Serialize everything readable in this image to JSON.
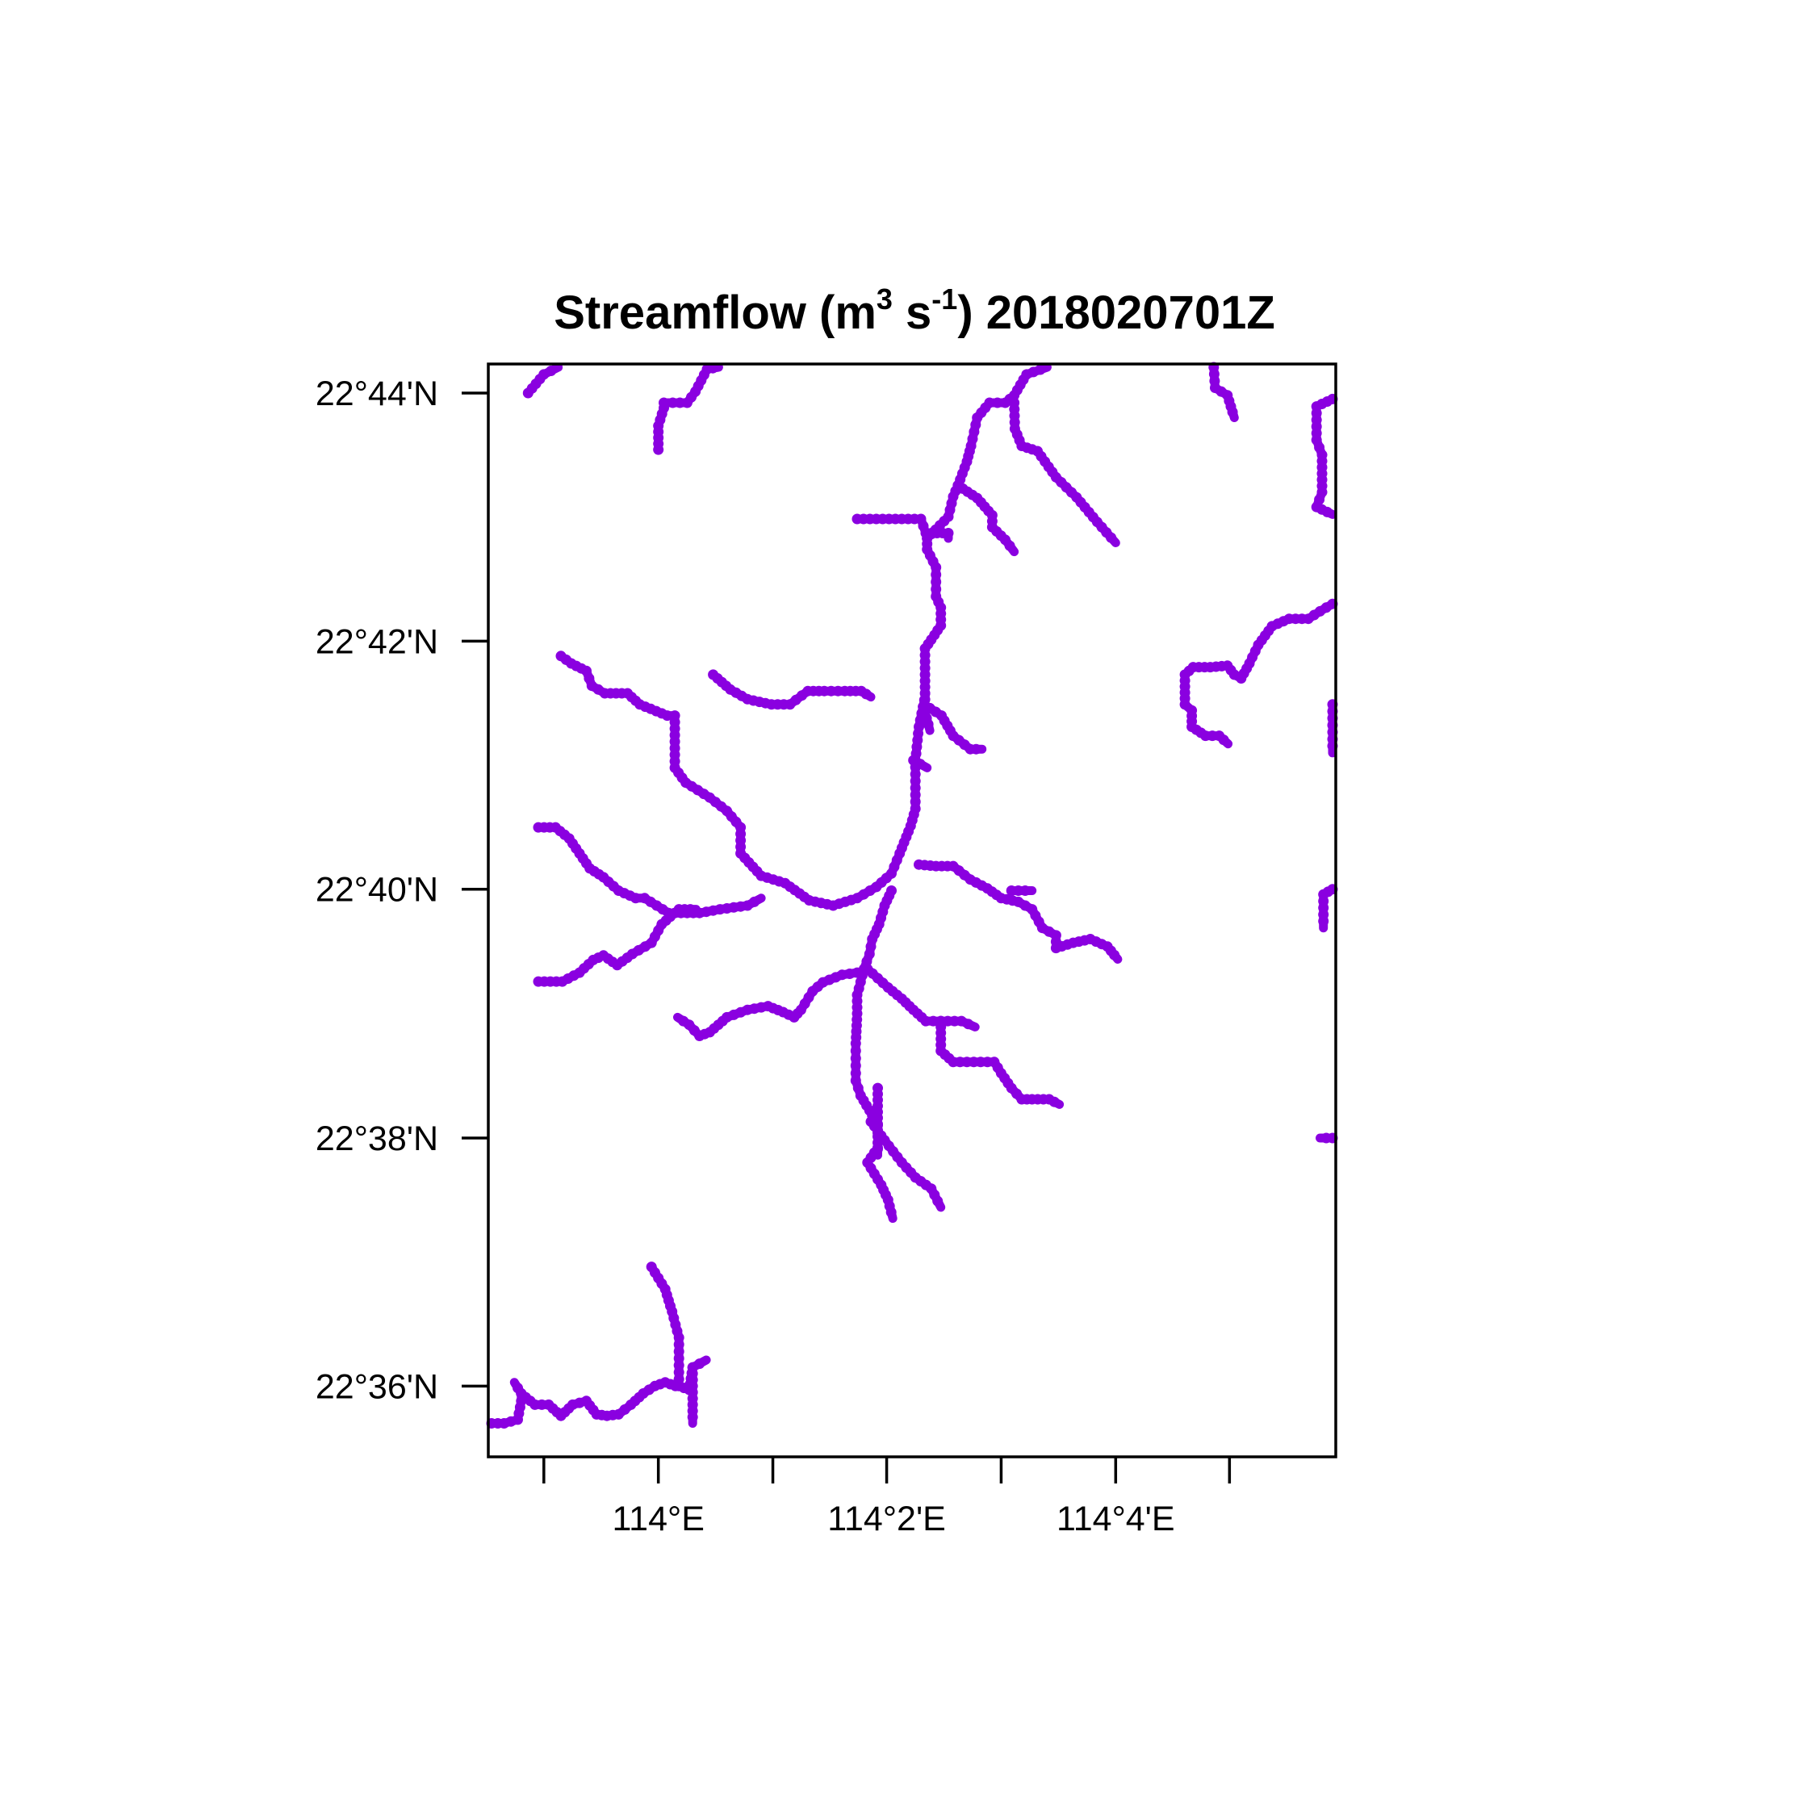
{
  "title": {
    "variable": "Streamflow",
    "unit_open": "(m",
    "unit_sup1": "3",
    "unit_mid": " s",
    "unit_sup2": "-1",
    "unit_close": ")",
    "timestamp": "2018020701Z"
  },
  "map": {
    "stream_color": "#8a00e0",
    "x_axis": {
      "ticks": [
        {
          "lon": 113.9833,
          "label": ""
        },
        {
          "lon": 114.0,
          "label": "114°E"
        },
        {
          "lon": 114.0167,
          "label": ""
        },
        {
          "lon": 114.0333,
          "label": "114°2'E"
        },
        {
          "lon": 114.05,
          "label": ""
        },
        {
          "lon": 114.0667,
          "label": "114°4'E"
        },
        {
          "lon": 114.0833,
          "label": ""
        }
      ]
    },
    "y_axis": {
      "ticks": [
        {
          "lat": 22.7333,
          "label": "22°44'N"
        },
        {
          "lat": 22.7,
          "label": "22°42'N"
        },
        {
          "lat": 22.6667,
          "label": "22°40'N"
        },
        {
          "lat": 22.6333,
          "label": "22°38'N"
        },
        {
          "lat": 22.6,
          "label": "22°36'N"
        }
      ]
    },
    "lon_range": [
      113.9752,
      114.0988
    ],
    "lat_range": [
      22.5905,
      22.7372
    ],
    "streams": [
      [
        [
          113.981,
          22.7333
        ],
        [
          113.9833,
          22.7358
        ],
        [
          113.9854,
          22.7372
        ]
      ],
      [
        [
          114.0,
          22.7257
        ],
        [
          114.0,
          22.7289
        ],
        [
          114.0008,
          22.7313
        ],
        [
          114.0008,
          22.732
        ],
        [
          114.0021,
          22.732
        ],
        [
          114.0042,
          22.732
        ],
        [
          114.0054,
          22.7335
        ],
        [
          114.0071,
          22.7365
        ],
        [
          114.0088,
          22.7372
        ]
      ],
      [
        [
          114.029,
          22.7164
        ],
        [
          114.0383,
          22.7164
        ],
        [
          114.039,
          22.7145
        ],
        [
          114.0423,
          22.7145
        ],
        [
          114.0423,
          22.7138
        ]
      ],
      [
        [
          114.0392,
          22.7138
        ],
        [
          114.0392,
          22.7123
        ],
        [
          114.0405,
          22.7099
        ],
        [
          114.0405,
          22.706
        ],
        [
          114.0412,
          22.7045
        ],
        [
          114.0412,
          22.7021
        ],
        [
          114.0398,
          22.7002
        ],
        [
          114.0389,
          22.699
        ],
        [
          114.0389,
          22.6955
        ],
        [
          114.0389,
          22.6905
        ],
        [
          114.0396,
          22.688
        ]
      ],
      [
        [
          114.0392,
          22.7138
        ],
        [
          114.0423,
          22.7167
        ],
        [
          114.043,
          22.7194
        ],
        [
          114.0437,
          22.7209
        ],
        [
          114.045,
          22.7241
        ],
        [
          114.0456,
          22.7262
        ],
        [
          114.0465,
          22.73
        ],
        [
          114.0483,
          22.732
        ],
        [
          114.0506,
          22.732
        ],
        [
          114.0519,
          22.733
        ],
        [
          114.0537,
          22.7358
        ],
        [
          114.0567,
          22.7372
        ]
      ],
      [
        [
          114.0437,
          22.7209
        ],
        [
          114.0465,
          22.7192
        ],
        [
          114.0487,
          22.7169
        ],
        [
          114.0487,
          22.7153
        ],
        [
          114.0506,
          22.7136
        ],
        [
          114.0519,
          22.712
        ]
      ],
      [
        [
          114.0519,
          22.732
        ],
        [
          114.052,
          22.7285
        ],
        [
          114.053,
          22.7262
        ],
        [
          114.0553,
          22.7255
        ],
        [
          114.058,
          22.722
        ],
        [
          114.061,
          22.7193
        ],
        [
          114.064,
          22.716
        ],
        [
          114.0667,
          22.7132
        ]
      ],
      [
        [
          114.081,
          22.7372
        ],
        [
          114.0812,
          22.734
        ],
        [
          114.083,
          22.733
        ],
        [
          114.084,
          22.73
        ]
      ],
      [
        [
          114.0988,
          22.7325
        ],
        [
          114.096,
          22.7315
        ],
        [
          114.096,
          22.727
        ],
        [
          114.0968,
          22.725
        ],
        [
          114.0968,
          22.72
        ],
        [
          114.096,
          22.718
        ],
        [
          114.0988,
          22.717
        ]
      ],
      [
        [
          114.0988,
          22.705
        ],
        [
          114.0965,
          22.704
        ],
        [
          114.0948,
          22.703
        ],
        [
          114.092,
          22.703
        ],
        [
          114.0895,
          22.702
        ],
        [
          114.0875,
          22.6995
        ],
        [
          114.0862,
          22.697
        ],
        [
          114.085,
          22.695
        ],
        [
          114.084,
          22.6955
        ],
        [
          114.083,
          22.6967
        ],
        [
          114.0805,
          22.6965
        ],
        [
          114.078,
          22.6965
        ],
        [
          114.0768,
          22.6955
        ],
        [
          114.0768,
          22.6915
        ],
        [
          114.0778,
          22.6907
        ],
        [
          114.0778,
          22.6885
        ],
        [
          114.0798,
          22.6873
        ],
        [
          114.0818,
          22.6873
        ],
        [
          114.0831,
          22.6862
        ]
      ],
      [
        [
          114.0988,
          22.6915
        ],
        [
          114.0988,
          22.685
        ]
      ],
      [
        [
          114.0988,
          22.6667
        ],
        [
          114.097,
          22.666
        ],
        [
          114.097,
          22.6615
        ]
      ],
      [
        [
          114.0988,
          22.6333
        ],
        [
          114.0965,
          22.6333
        ]
      ],
      [
        [
          113.9858,
          22.698
        ],
        [
          113.9873,
          22.697
        ],
        [
          113.9895,
          22.696
        ],
        [
          113.9903,
          22.694
        ],
        [
          113.9922,
          22.693
        ],
        [
          113.9955,
          22.693
        ],
        [
          113.9973,
          22.6915
        ],
        [
          114.0013,
          22.69
        ],
        [
          114.0024,
          22.69
        ],
        [
          114.0024,
          22.683
        ],
        [
          114.004,
          22.681
        ],
        [
          114.0075,
          22.679
        ],
        [
          114.01,
          22.6772
        ],
        [
          114.012,
          22.675
        ],
        [
          114.012,
          22.6715
        ],
        [
          114.015,
          22.6685
        ],
        [
          114.0185,
          22.6675
        ],
        [
          114.022,
          22.6652
        ],
        [
          114.0255,
          22.6645
        ],
        [
          114.029,
          22.6655
        ],
        [
          114.0318,
          22.667
        ],
        [
          114.034,
          22.6688
        ],
        [
          114.0352,
          22.6715
        ],
        [
          114.0368,
          22.6752
        ],
        [
          114.0375,
          22.6775
        ],
        [
          114.0375,
          22.684
        ],
        [
          114.038,
          22.6885
        ],
        [
          114.039,
          22.693
        ]
      ],
      [
        [
          114.008,
          22.6955
        ],
        [
          114.0105,
          22.6935
        ],
        [
          114.013,
          22.6922
        ],
        [
          114.0165,
          22.6915
        ],
        [
          114.0192,
          22.6915
        ],
        [
          114.0218,
          22.6933
        ],
        [
          114.0242,
          22.6933
        ],
        [
          114.0272,
          22.6933
        ],
        [
          114.0296,
          22.6933
        ],
        [
          114.031,
          22.6925
        ]
      ],
      [
        [
          114.0396,
          22.691
        ],
        [
          114.0413,
          22.69
        ],
        [
          114.043,
          22.6873
        ],
        [
          114.0455,
          22.6855
        ],
        [
          114.0472,
          22.6855
        ]
      ],
      [
        [
          114.0372,
          22.684
        ],
        [
          114.0392,
          22.683
        ]
      ],
      [
        [
          113.9825,
          22.675
        ],
        [
          113.985,
          22.675
        ],
        [
          113.987,
          22.6735
        ],
        [
          113.9885,
          22.6715
        ],
        [
          113.99,
          22.6695
        ],
        [
          113.992,
          22.6683
        ],
        [
          113.9942,
          22.6665
        ],
        [
          113.9967,
          22.6655
        ],
        [
          113.998,
          22.6655
        ],
        [
          114.0015,
          22.6635
        ],
        [
          114.006,
          22.6635
        ],
        [
          114.009,
          22.664
        ],
        [
          114.013,
          22.6645
        ],
        [
          114.015,
          22.6655
        ]
      ],
      [
        [
          113.9825,
          22.6543
        ],
        [
          113.986,
          22.6543
        ],
        [
          113.9885,
          22.6555
        ],
        [
          113.9905,
          22.6572
        ],
        [
          113.992,
          22.6578
        ],
        [
          113.994,
          22.6565
        ],
        [
          113.9962,
          22.658
        ],
        [
          113.999,
          22.6595
        ],
        [
          114.0005,
          22.662
        ],
        [
          114.003,
          22.664
        ],
        [
          114.0055,
          22.664
        ]
      ],
      [
        [
          114.038,
          22.67
        ],
        [
          114.0405,
          22.6698
        ],
        [
          114.043,
          22.6698
        ],
        [
          114.0455,
          22.668
        ],
        [
          114.048,
          22.6668
        ],
        [
          114.05,
          22.6655
        ],
        [
          114.0525,
          22.665
        ],
        [
          114.0545,
          22.664
        ],
        [
          114.056,
          22.6615
        ],
        [
          114.058,
          22.6605
        ],
        [
          114.058,
          22.6588
        ],
        [
          114.0605,
          22.6595
        ],
        [
          114.063,
          22.66
        ],
        [
          114.0655,
          22.659
        ],
        [
          114.067,
          22.6573
        ]
      ],
      [
        [
          114.0515,
          22.6665
        ],
        [
          114.0545,
          22.6665
        ]
      ],
      [
        [
          114.034,
          22.6665
        ],
        [
          114.033,
          22.6645
        ],
        [
          114.0322,
          22.662
        ],
        [
          114.0312,
          22.66
        ],
        [
          114.0308,
          22.658
        ],
        [
          114.03,
          22.656
        ],
        [
          114.029,
          22.6525
        ],
        [
          114.029,
          22.65
        ],
        [
          114.0288,
          22.646
        ],
        [
          114.0288,
          22.643
        ],
        [
          114.0288,
          22.641
        ],
        [
          114.0295,
          22.639
        ],
        [
          114.0308,
          22.637
        ],
        [
          114.032,
          22.635
        ],
        [
          114.032,
          22.633
        ]
      ],
      [
        [
          114.0305,
          22.656
        ],
        [
          114.0335,
          22.6535
        ],
        [
          114.0355,
          22.652
        ],
        [
          114.0372,
          22.6505
        ],
        [
          114.039,
          22.649
        ],
        [
          114.0412,
          22.649
        ],
        [
          114.0442,
          22.649
        ],
        [
          114.0462,
          22.6482
        ]
      ],
      [
        [
          114.0412,
          22.649
        ],
        [
          114.0412,
          22.645
        ],
        [
          114.043,
          22.6435
        ],
        [
          114.046,
          22.6435
        ],
        [
          114.049,
          22.6435
        ],
        [
          114.05,
          22.642
        ],
        [
          114.0515,
          22.64
        ],
        [
          114.053,
          22.6385
        ],
        [
          114.0545,
          22.6385
        ],
        [
          114.057,
          22.6385
        ],
        [
          114.0585,
          22.6378
        ]
      ],
      [
        [
          114.029,
          22.6555
        ],
        [
          114.0268,
          22.6552
        ],
        [
          114.024,
          22.6542
        ],
        [
          114.0225,
          22.653
        ],
        [
          114.0208,
          22.6505
        ],
        [
          114.0198,
          22.6495
        ],
        [
          114.0182,
          22.6502
        ],
        [
          114.016,
          22.651
        ],
        [
          114.013,
          22.6505
        ],
        [
          114.01,
          22.6495
        ],
        [
          114.0075,
          22.6475
        ],
        [
          114.006,
          22.647
        ],
        [
          114.0045,
          22.6485
        ],
        [
          114.0028,
          22.6495
        ]
      ],
      [
        [
          114.032,
          22.64
        ],
        [
          114.032,
          22.636
        ],
        [
          114.032,
          22.631
        ]
      ],
      [
        [
          114.031,
          22.6355
        ],
        [
          114.033,
          22.633
        ],
        [
          114.0355,
          22.63
        ],
        [
          114.0375,
          22.628
        ],
        [
          114.0398,
          22.6265
        ],
        [
          114.0412,
          22.624
        ]
      ],
      [
        [
          114.032,
          22.632
        ],
        [
          114.0305,
          22.63
        ],
        [
          114.0325,
          22.627
        ],
        [
          114.0335,
          22.625
        ],
        [
          114.0342,
          22.6225
        ]
      ],
      [
        [
          113.999,
          22.616
        ],
        [
          114.001,
          22.613
        ],
        [
          114.002,
          22.61
        ],
        [
          114.003,
          22.6065
        ],
        [
          114.003,
          22.6
        ],
        [
          114.0045,
          22.5995
        ],
        [
          114.005,
          22.6025
        ],
        [
          114.007,
          22.6035
        ]
      ],
      [
        [
          114.005,
          22.6025
        ],
        [
          114.005,
          22.595
        ]
      ],
      [
        [
          113.9755,
          22.595
        ],
        [
          113.9775,
          22.595
        ],
        [
          113.9795,
          22.5955
        ],
        [
          113.98,
          22.598
        ],
        [
          113.98,
          22.599
        ],
        [
          113.982,
          22.5975
        ],
        [
          113.984,
          22.5975
        ],
        [
          113.9858,
          22.596
        ],
        [
          113.9875,
          22.5975
        ],
        [
          113.9895,
          22.598
        ],
        [
          113.991,
          22.5962
        ],
        [
          113.9925,
          22.596
        ],
        [
          113.9942,
          22.5962
        ],
        [
          113.996,
          22.5975
        ],
        [
          113.9978,
          22.599
        ],
        [
          113.9995,
          22.6
        ],
        [
          114.001,
          22.6005
        ],
        [
          114.0025,
          22.6
        ],
        [
          114.003,
          22.601
        ]
      ],
      [
        [
          113.98,
          22.599
        ],
        [
          113.979,
          22.6005
        ]
      ]
    ]
  }
}
